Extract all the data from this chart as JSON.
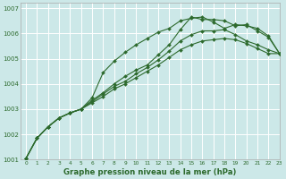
{
  "title": "Graphe pression niveau de la mer (hPa)",
  "bg_color": "#cce8e8",
  "line_color": "#2d6a2d",
  "grid_color": "#ffffff",
  "xlim": [
    -0.5,
    23
  ],
  "ylim": [
    1001,
    1007.2
  ],
  "xticks": [
    0,
    1,
    2,
    3,
    4,
    5,
    6,
    7,
    8,
    9,
    10,
    11,
    12,
    13,
    14,
    15,
    16,
    17,
    18,
    19,
    20,
    21,
    22,
    23
  ],
  "yticks": [
    1001,
    1002,
    1003,
    1004,
    1005,
    1006,
    1007
  ],
  "series": [
    [
      1001.05,
      1001.85,
      1002.3,
      1002.65,
      1002.85,
      1003.0,
      1003.45,
      1004.45,
      1004.9,
      1005.25,
      1005.55,
      1005.8,
      1006.05,
      1006.2,
      1006.5,
      1006.6,
      1006.65,
      1006.45,
      1006.2,
      1006.35,
      1006.3,
      1006.2,
      1005.9,
      1005.2
    ],
    [
      1001.05,
      1001.85,
      1002.3,
      1002.65,
      1002.85,
      1003.0,
      1003.35,
      1003.65,
      1004.0,
      1004.3,
      1004.55,
      1004.75,
      1005.15,
      1005.55,
      1006.15,
      1006.65,
      1006.55,
      1006.55,
      1006.5,
      1006.3,
      1006.35,
      1006.1,
      1005.85,
      1005.2
    ],
    [
      1001.05,
      1001.85,
      1002.3,
      1002.65,
      1002.85,
      1003.0,
      1003.3,
      1003.6,
      1003.9,
      1004.1,
      1004.4,
      1004.65,
      1004.95,
      1005.3,
      1005.7,
      1005.95,
      1006.1,
      1006.1,
      1006.15,
      1005.95,
      1005.7,
      1005.55,
      1005.35,
      1005.2
    ],
    [
      1001.05,
      1001.85,
      1002.3,
      1002.65,
      1002.85,
      1003.0,
      1003.25,
      1003.5,
      1003.8,
      1004.0,
      1004.25,
      1004.5,
      1004.75,
      1005.05,
      1005.35,
      1005.55,
      1005.7,
      1005.75,
      1005.8,
      1005.75,
      1005.6,
      1005.4,
      1005.2,
      1005.2
    ]
  ]
}
